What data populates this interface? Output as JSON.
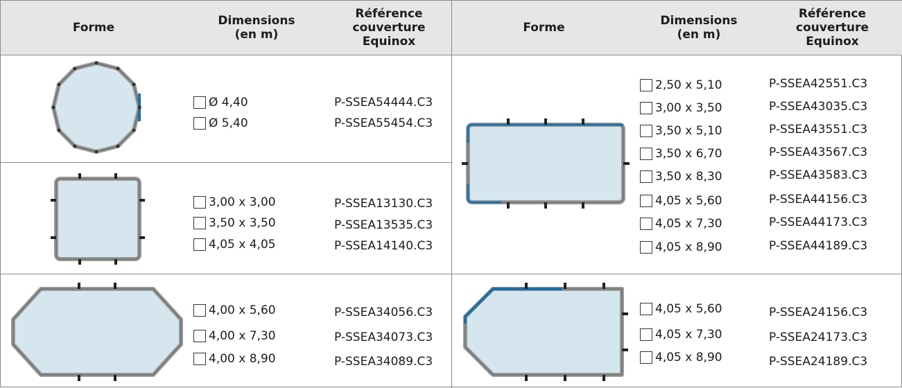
{
  "headers": {
    "forme": "Forme",
    "dimensions": "Dimensions\n(en m)",
    "reference": "Référence\ncouverture\nEquinox"
  },
  "sections": {
    "octagon": {
      "shape_icon": "dodecagon-pool-icon",
      "rows": [
        {
          "dim": "Ø 4,40",
          "ref": "P-SSEA54444.C3"
        },
        {
          "dim": "Ø 5,40",
          "ref": "P-SSEA55454.C3"
        }
      ]
    },
    "square": {
      "shape_icon": "square-pool-icon",
      "rows": [
        {
          "dim": "3,00 x 3,00",
          "ref": "P-SSEA13130.C3"
        },
        {
          "dim": "3,50 x 3,50",
          "ref": "P-SSEA13535.C3"
        },
        {
          "dim": "4,05 x 4,05",
          "ref": "P-SSEA14140.C3"
        }
      ]
    },
    "elongated_octagon": {
      "shape_icon": "elongated-octagon-pool-icon",
      "rows": [
        {
          "dim": "4,00 x 5,60",
          "ref": "P-SSEA34056.C3"
        },
        {
          "dim": "4,00 x 7,30",
          "ref": "P-SSEA34073.C3"
        },
        {
          "dim": "4,00 x 8,90",
          "ref": "P-SSEA34089.C3"
        }
      ]
    },
    "rectangle": {
      "shape_icon": "rectangle-pool-icon",
      "rows": [
        {
          "dim": "2,50 x 5,10",
          "ref": "P-SSEA42551.C3"
        },
        {
          "dim": "3,00 x 3,50",
          "ref": "P-SSEA43035.C3"
        },
        {
          "dim": "3,50 x 5,10",
          "ref": "P-SSEA43551.C3"
        },
        {
          "dim": "3,50 x 6,70",
          "ref": "P-SSEA43567.C3"
        },
        {
          "dim": "3,50 x 8,30",
          "ref": "P-SSEA43583.C3"
        },
        {
          "dim": "4,05 x 5,60",
          "ref": "P-SSEA44156.C3"
        },
        {
          "dim": "4,05 x 7,30",
          "ref": "P-SSEA44173.C3"
        },
        {
          "dim": "4,05 x 8,90",
          "ref": "P-SSEA44189.C3"
        }
      ]
    },
    "cut_corner": {
      "shape_icon": "cut-corner-pool-icon",
      "rows": [
        {
          "dim": "4,05 x 5,60",
          "ref": "P-SSEA24156.C3"
        },
        {
          "dim": "4,05 x 7,30",
          "ref": "P-SSEA24173.C3"
        },
        {
          "dim": "4,05 x 8,90",
          "ref": "P-SSEA24189.C3"
        }
      ]
    }
  },
  "colors": {
    "header_bg": "#e6e6e6",
    "water": "#d5e6ef",
    "frame_gray": "#9a9a9a",
    "accent_blue": "#1e6fa6",
    "border": "#8a8a8a"
  }
}
